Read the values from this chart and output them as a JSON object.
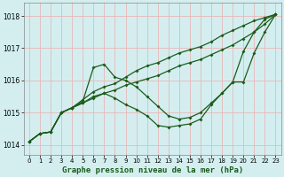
{
  "xlabel": "Graphe pression niveau de la mer (hPa)",
  "bg_color": "#d4eef0",
  "grid_color_minor": "#e8b8b8",
  "grid_color_major": "#c8a0a0",
  "line_color": "#1a5c1a",
  "xlim": [
    -0.5,
    23.5
  ],
  "ylim": [
    1013.7,
    1018.4
  ],
  "yticks": [
    1014,
    1015,
    1016,
    1017,
    1018
  ],
  "xticks": [
    0,
    1,
    2,
    3,
    4,
    5,
    6,
    7,
    8,
    9,
    10,
    11,
    12,
    13,
    14,
    15,
    16,
    17,
    18,
    19,
    20,
    21,
    22,
    23
  ],
  "series": [
    {
      "x": [
        0,
        1,
        2,
        3,
        4,
        5,
        6,
        7,
        8,
        9,
        10,
        11,
        12,
        13,
        14,
        15,
        16,
        17,
        18,
        19,
        20,
        21,
        22,
        23
      ],
      "y": [
        1014.1,
        1014.35,
        1014.4,
        1015.0,
        1015.15,
        1015.4,
        1015.65,
        1015.8,
        1015.9,
        1016.1,
        1016.3,
        1016.45,
        1016.55,
        1016.7,
        1016.85,
        1016.95,
        1017.05,
        1017.2,
        1017.4,
        1017.55,
        1017.7,
        1017.85,
        1017.95,
        1018.05
      ]
    },
    {
      "x": [
        0,
        1,
        2,
        3,
        4,
        5,
        6,
        7,
        8,
        9,
        10,
        11,
        12,
        13,
        14,
        15,
        16,
        17,
        18,
        19,
        20,
        21,
        22,
        23
      ],
      "y": [
        1014.1,
        1014.35,
        1014.4,
        1015.0,
        1015.15,
        1015.3,
        1015.45,
        1015.6,
        1015.7,
        1015.85,
        1015.95,
        1016.05,
        1016.15,
        1016.3,
        1016.45,
        1016.55,
        1016.65,
        1016.8,
        1016.95,
        1017.1,
        1017.3,
        1017.5,
        1017.75,
        1018.05
      ]
    },
    {
      "x": [
        0,
        1,
        2,
        3,
        4,
        5,
        6,
        7,
        8,
        9,
        10,
        11,
        12,
        13,
        14,
        15,
        16,
        17,
        18,
        19,
        20,
        21,
        22,
        23
      ],
      "y": [
        1014.1,
        1014.35,
        1014.4,
        1015.0,
        1015.15,
        1015.35,
        1016.4,
        1016.5,
        1016.1,
        1016.0,
        1015.8,
        1015.5,
        1015.2,
        1014.9,
        1014.8,
        1014.85,
        1015.0,
        1015.3,
        1015.6,
        1015.95,
        1016.9,
        1017.5,
        1017.9,
        1018.05
      ]
    },
    {
      "x": [
        0,
        1,
        2,
        3,
        4,
        5,
        6,
        7,
        8,
        9,
        10,
        11,
        12,
        13,
        14,
        15,
        16,
        17,
        18,
        19,
        20,
        21,
        22,
        23
      ],
      "y": [
        1014.1,
        1014.35,
        1014.4,
        1015.0,
        1015.15,
        1015.3,
        1015.5,
        1015.6,
        1015.45,
        1015.25,
        1015.1,
        1014.9,
        1014.6,
        1014.55,
        1014.6,
        1014.65,
        1014.8,
        1015.25,
        1015.6,
        1015.95,
        1015.95,
        1016.85,
        1017.5,
        1018.05
      ]
    }
  ]
}
